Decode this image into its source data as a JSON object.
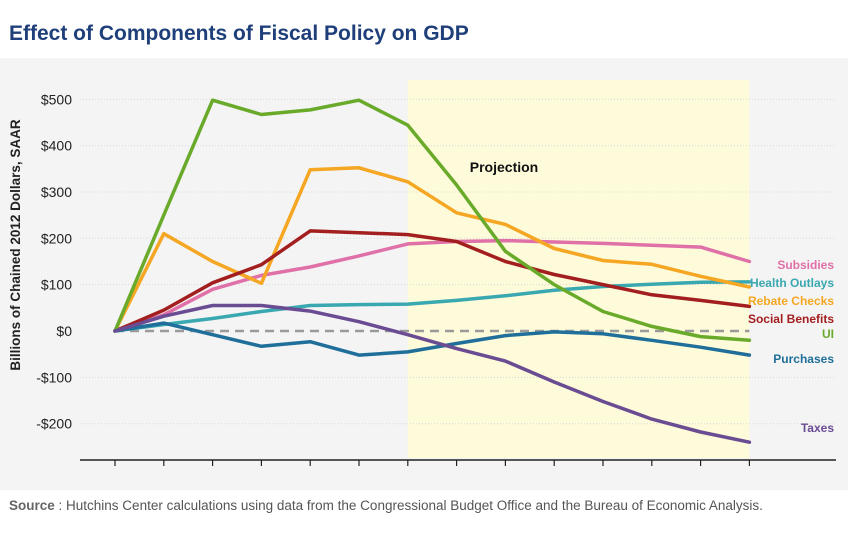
{
  "title": "Effect of Components  of Fiscal Policy on GDP",
  "source": {
    "label": "Source",
    "text": " : Hutchins Center calculations using data from the Congressional Budget Office and the Bureau of Economic Analysis."
  },
  "chart_data": {
    "type": "line",
    "ylabel": "Billions of Chained 2012 Dollars, SAAR",
    "ylim": [
      -240,
      540
    ],
    "yticks": [
      {
        "value": 500,
        "label": "$500"
      },
      {
        "value": 400,
        "label": "$400"
      },
      {
        "value": 300,
        "label": "$300"
      },
      {
        "value": 200,
        "label": "$200"
      },
      {
        "value": 100,
        "label": "$100"
      },
      {
        "value": 0,
        "label": "$0"
      },
      {
        "value": -100,
        "label": "-$100"
      },
      {
        "value": -200,
        "label": "-$200"
      }
    ],
    "x": [
      0,
      1,
      2,
      3,
      4,
      5,
      6,
      7,
      8,
      9,
      10,
      11,
      12,
      13
    ],
    "projection": {
      "label": "Projection",
      "start": 6,
      "end": 13
    },
    "grid": true,
    "zero_line": "dashed",
    "series": [
      {
        "name": "Subsidies",
        "color": "#e070a8",
        "values": [
          0,
          35,
          90,
          120,
          138,
          162,
          188,
          193,
          195,
          192,
          189,
          185,
          181,
          150
        ]
      },
      {
        "name": "Health Outlays",
        "color": "#3aa8b0",
        "values": [
          0,
          14,
          27,
          42,
          55,
          57,
          58,
          66,
          76,
          88,
          96,
          101,
          105,
          106
        ]
      },
      {
        "name": "Rebate Checks",
        "color": "#f5a623",
        "values": [
          0,
          210,
          150,
          103,
          348,
          352,
          322,
          255,
          230,
          178,
          152,
          144,
          118,
          95
        ]
      },
      {
        "name": "Social Benefits",
        "color": "#a31f1f",
        "values": [
          0,
          45,
          104,
          143,
          216,
          212,
          208,
          193,
          150,
          122,
          100,
          78,
          66,
          53
        ]
      },
      {
        "name": "UI",
        "color": "#6aaa2a",
        "values": [
          0,
          250,
          498,
          467,
          477,
          498,
          444,
          315,
          172,
          100,
          42,
          10,
          -12,
          -20
        ]
      },
      {
        "name": "Purchases",
        "color": "#1f6f9a",
        "values": [
          0,
          17,
          -8,
          -33,
          -23,
          -52,
          -45,
          -27,
          -10,
          -2,
          -6,
          -20,
          -35,
          -52
        ]
      },
      {
        "name": "Taxes",
        "color": "#6a4c93",
        "values": [
          0,
          32,
          55,
          55,
          43,
          20,
          -8,
          -38,
          -65,
          -110,
          -152,
          -190,
          -218,
          -240
        ]
      }
    ]
  }
}
